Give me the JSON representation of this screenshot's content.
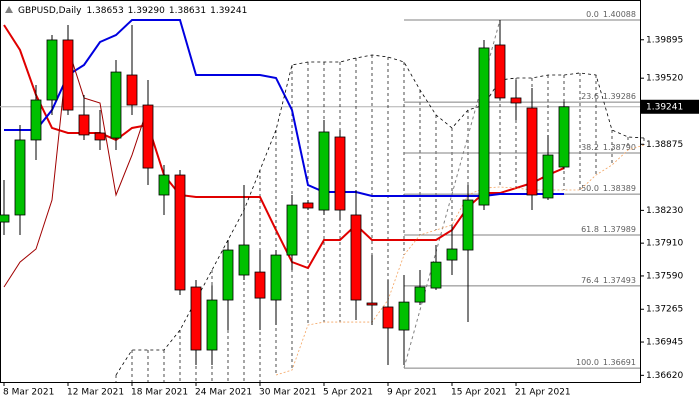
{
  "chart_data": {
    "type": "candlestick",
    "title": "GBPUSD,Daily",
    "last_bar_labels": {
      "open": "1.38653",
      "high": "1.39290",
      "low": "1.38631",
      "close": "1.39241"
    },
    "categories": [
      "8 Mar 2021",
      null,
      null,
      null,
      "12 Mar 2021",
      null,
      null,
      null,
      "18 Mar 2021",
      null,
      null,
      null,
      "24 Mar 2021",
      null,
      null,
      null,
      "30 Mar 2021",
      null,
      null,
      null,
      "5 Apr 2021",
      null,
      null,
      null,
      "9 Apr 2021",
      null,
      null,
      null,
      "15 Apr 2021",
      null,
      null,
      null,
      "21 Apr 2021",
      null,
      null,
      null,
      null,
      null,
      null,
      null,
      null
    ],
    "open": [
      1.38116,
      1.38185,
      1.38917,
      1.39307,
      1.39893,
      1.39161,
      1.38985,
      1.38936,
      1.39551,
      1.39258,
      1.3838,
      1.38575,
      1.37482,
      1.36867,
      1.37355,
      1.37599,
      1.37628,
      1.37355,
      1.37794,
      1.38302,
      1.38233,
      1.38946,
      1.38185,
      1.37326,
      1.37287,
      1.37062,
      1.37335,
      1.37472,
      1.37745,
      1.37843,
      1.38282,
      1.39844,
      1.39327,
      1.39229,
      1.38351,
      1.38653,
      null,
      null,
      null,
      null,
      null
    ],
    "high": [
      1.38526,
      1.39063,
      1.39453,
      1.39941,
      1.40039,
      1.39356,
      1.39209,
      1.39697,
      1.40039,
      1.39502,
      1.38673,
      1.38624,
      1.3755,
      1.37501,
      1.37941,
      1.38477,
      1.37843,
      1.37843,
      1.3838,
      1.38331,
      1.39112,
      1.39014,
      1.38429,
      1.37794,
      1.3755,
      1.37599,
      1.37648,
      1.37892,
      1.38087,
      1.38477,
      1.39893,
      1.40088,
      1.39502,
      1.39424,
      1.38966,
      1.3929,
      null,
      null,
      null,
      null,
      null
    ],
    "low": [
      1.37989,
      1.37989,
      1.38721,
      1.39161,
      1.39161,
      1.38917,
      1.38819,
      1.38819,
      1.39161,
      1.38477,
      1.38185,
      1.37404,
      1.36721,
      1.36721,
      1.37062,
      1.3755,
      1.37062,
      1.37111,
      1.37648,
      1.38233,
      1.38185,
      1.38136,
      1.3716,
      1.37111,
      1.36721,
      1.36721,
      1.37306,
      1.37453,
      1.37599,
      1.3714,
      1.38233,
      1.39307,
      1.39112,
      1.38233,
      1.38331,
      1.38631,
      null,
      null,
      null,
      null,
      null
    ],
    "close": [
      1.38185,
      1.38917,
      1.39307,
      1.39893,
      1.39209,
      1.38966,
      1.38917,
      1.3958,
      1.39258,
      1.38643,
      1.38575,
      1.37453,
      1.36867,
      1.37355,
      1.37843,
      1.37892,
      1.37374,
      1.37794,
      1.38282,
      1.38253,
      1.38995,
      1.38233,
      1.37355,
      1.37306,
      1.37082,
      1.37335,
      1.37482,
      1.37725,
      1.37853,
      1.38331,
      1.39815,
      1.39327,
      1.39278,
      1.3838,
      1.3877,
      1.39241,
      null,
      null,
      null,
      null,
      null
    ],
    "bull_color": "#00c000",
    "bear_color": "#ff0000",
    "series": [
      {
        "color": "#e00000",
        "width": 2,
        "dash": "none",
        "values": [
          1.40039,
          1.39795,
          1.39356,
          1.39034,
          1.38985,
          1.38985,
          1.38985,
          1.38917,
          1.39034,
          1.39063,
          1.38575,
          1.3838,
          1.3836,
          1.3836,
          1.3836,
          1.3836,
          1.3836,
          1.38038,
          1.37726,
          1.37667,
          1.37941,
          1.37941,
          1.38087,
          1.37941,
          1.37941,
          1.37941,
          1.37941,
          1.37941,
          1.38038,
          1.38263,
          1.38399,
          1.38399,
          1.38448,
          1.38497,
          1.38575,
          1.38643,
          null,
          null,
          null,
          null,
          null
        ]
      },
      {
        "color": "#0000e0",
        "width": 2,
        "dash": "none",
        "values": [
          1.39014,
          1.39014,
          1.39014,
          1.39209,
          1.39551,
          1.39649,
          1.39873,
          1.39941,
          1.40088,
          1.40088,
          1.40088,
          1.40088,
          1.39551,
          1.39551,
          1.39551,
          1.39551,
          1.39551,
          1.39522,
          1.39209,
          1.38477,
          1.38409,
          1.38409,
          1.38409,
          1.3837,
          1.3837,
          1.3837,
          1.3837,
          1.3837,
          1.3837,
          1.3837,
          1.3837,
          1.3839,
          1.3839,
          1.3839,
          1.3839,
          1.3839,
          null,
          null,
          null,
          null,
          null
        ]
      },
      {
        "color": "#a00000",
        "width": 1,
        "dash": "none",
        "values": [
          1.37482,
          1.37725,
          1.37853,
          1.38331,
          1.39815,
          1.39327,
          1.39278,
          1.3838,
          1.3877,
          1.39241,
          null,
          null,
          null,
          null,
          null,
          null,
          null,
          null,
          null,
          null,
          null,
          null,
          null,
          null,
          null,
          null,
          null,
          null,
          null,
          null,
          null,
          null,
          null,
          null,
          null,
          null,
          null,
          null,
          null,
          null,
          null
        ]
      },
      {
        "color": "#000000",
        "width": 0.8,
        "dash": "3 3",
        "values": [
          null,
          null,
          null,
          null,
          null,
          null,
          null,
          1.36623,
          1.36867,
          1.36867,
          1.36867,
          1.37062,
          1.37355,
          1.37648,
          1.37941,
          1.38233,
          1.38624,
          1.39014,
          1.39649,
          1.39678,
          1.39678,
          1.39678,
          1.39717,
          1.39746,
          1.39727,
          1.39678,
          1.39405,
          1.39161,
          1.39034,
          1.39209,
          1.39258,
          1.39502,
          1.39522,
          1.39522,
          1.39551,
          1.39551,
          1.39571,
          1.39551,
          1.39014,
          1.38946,
          1.38936
        ]
      },
      {
        "color": "#f4a460",
        "width": 0.8,
        "dash": "2 2",
        "values": [
          null,
          null,
          null,
          null,
          null,
          null,
          null,
          null,
          null,
          null,
          null,
          null,
          null,
          null,
          null,
          null,
          null,
          1.36623,
          1.36672,
          1.37111,
          1.3714,
          1.3714,
          1.3714,
          1.3714,
          1.37355,
          1.37794,
          1.37989,
          1.38038,
          1.38087,
          1.3838,
          1.38448,
          1.38458,
          1.38448,
          1.38429,
          1.38429,
          1.38429,
          1.38429,
          1.38575,
          1.38673,
          1.38819,
          1.38868
        ]
      }
    ],
    "fibonacci": [
      {
        "ratio": "0.0",
        "price": 1.40088
      },
      {
        "ratio": "23.6",
        "price": 1.39286
      },
      {
        "ratio": "38.2",
        "price": {
          "value": 1.3879,
          "label": "1.38790"
        }
      },
      {
        "ratio": "50.0",
        "price": 1.38389
      },
      {
        "ratio": "61.8",
        "price": 1.37989
      },
      {
        "ratio": "76.4",
        "price": 1.37493
      },
      {
        "ratio": "100.0",
        "price": 1.36691
      }
    ],
    "ylim": [
      1.36555,
      1.40283
    ],
    "yticks": [
      1.39895,
      {
        "value": 1.3952,
        "label": "1.39520"
      },
      1.38875,
      {
        "value": 1.3823,
        "label": "1.38230"
      },
      {
        "value": 1.3791,
        "label": "1.37910"
      },
      {
        "value": 1.3759,
        "label": "1.37590"
      },
      1.37265,
      1.36945,
      {
        "value": 1.3662,
        "label": "1.36620"
      }
    ]
  }
}
